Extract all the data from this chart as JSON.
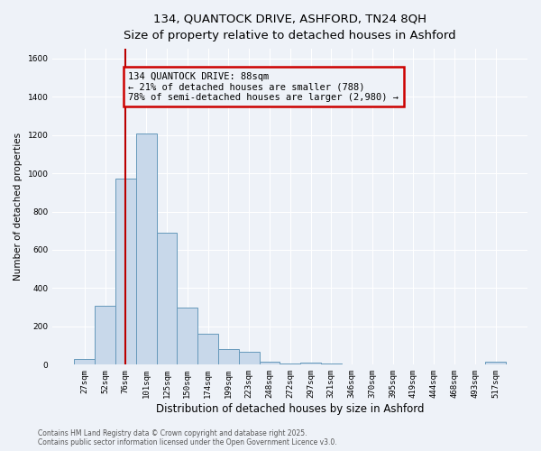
{
  "title_line1": "134, QUANTOCK DRIVE, ASHFORD, TN24 8QH",
  "title_line2": "Size of property relative to detached houses in Ashford",
  "xlabel": "Distribution of detached houses by size in Ashford",
  "ylabel": "Number of detached properties",
  "categories": [
    "27sqm",
    "52sqm",
    "76sqm",
    "101sqm",
    "125sqm",
    "150sqm",
    "174sqm",
    "199sqm",
    "223sqm",
    "248sqm",
    "272sqm",
    "297sqm",
    "321sqm",
    "346sqm",
    "370sqm",
    "395sqm",
    "419sqm",
    "444sqm",
    "468sqm",
    "493sqm",
    "517sqm"
  ],
  "values": [
    30,
    310,
    970,
    1210,
    690,
    300,
    160,
    80,
    68,
    15,
    5,
    10,
    5,
    3,
    3,
    2,
    2,
    2,
    2,
    2,
    15
  ],
  "bar_color": "#c8d8ea",
  "bar_edge_color": "#6699bb",
  "vline_color": "#bb0000",
  "annotation_text": "134 QUANTOCK DRIVE: 88sqm\n← 21% of detached houses are smaller (788)\n78% of semi-detached houses are larger (2,980) →",
  "annotation_box_color": "#cc0000",
  "ylim": [
    0,
    1650
  ],
  "background_color": "#eef2f8",
  "grid_color": "#d8dde8",
  "footer_line1": "Contains HM Land Registry data © Crown copyright and database right 2025.",
  "footer_line2": "Contains public sector information licensed under the Open Government Licence v3.0."
}
